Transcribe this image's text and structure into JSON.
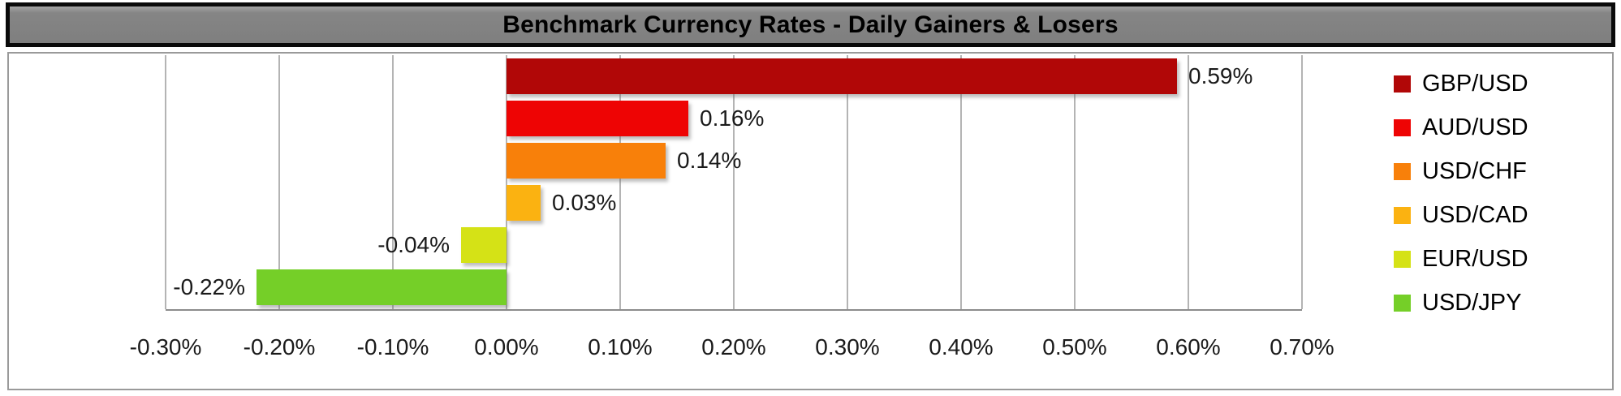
{
  "title": "Benchmark Currency Rates - Daily Gainers & Losers",
  "chart_data": {
    "type": "bar",
    "orientation": "horizontal",
    "title": "Benchmark Currency Rates - Daily Gainers & Losers",
    "categories": [
      "GBP/USD",
      "AUD/USD",
      "USD/CHF",
      "USD/CAD",
      "EUR/USD",
      "USD/JPY"
    ],
    "values": [
      0.59,
      0.16,
      0.14,
      0.03,
      -0.04,
      -0.22
    ],
    "value_labels": [
      "0.59%",
      "0.16%",
      "0.14%",
      "0.03%",
      "-0.04%",
      "-0.22%"
    ],
    "colors": [
      "#b10707",
      "#ee0404",
      "#f8800a",
      "#fbb211",
      "#d5e216",
      "#75cf28"
    ],
    "xlabel": "",
    "ylabel": "",
    "xlim": [
      -0.3,
      0.7
    ],
    "x_ticks": [
      -0.3,
      -0.2,
      -0.1,
      0.0,
      0.1,
      0.2,
      0.3,
      0.4,
      0.5,
      0.6,
      0.7
    ],
    "x_tick_labels": [
      "-0.30%",
      "-0.20%",
      "-0.10%",
      "0.00%",
      "0.10%",
      "0.20%",
      "0.30%",
      "0.40%",
      "0.50%",
      "0.60%",
      "0.70%"
    ],
    "grid": true,
    "legend_position": "right",
    "unit": "percent"
  },
  "colors": {
    "title_bar_bg": "#7f7f7f",
    "title_bar_border": "#0a0a0a",
    "title_text": "#000000",
    "chart_area_border": "#9a9a9a",
    "gridline": "#b4b4b4",
    "axis_line": "#8c8c8c",
    "label_text": "#1a1a1a"
  }
}
